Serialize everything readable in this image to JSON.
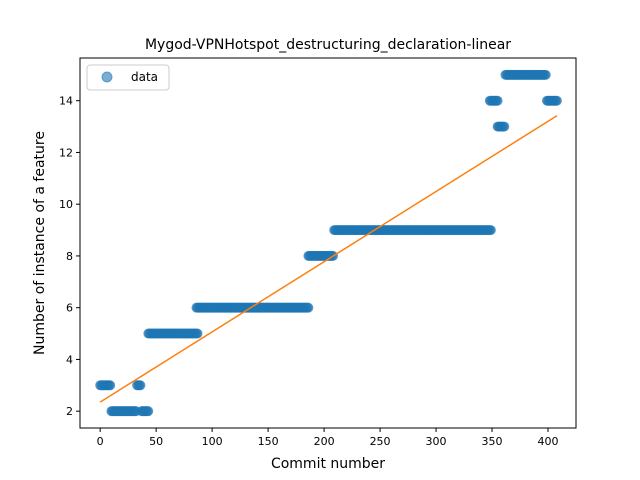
{
  "chart_data": {
    "type": "scatter",
    "title": "Mygod-VPNHotspot_destructuring_declaration-linear",
    "xlabel": "Commit number",
    "ylabel": "Number of instance of a feature",
    "xlim": [
      -18,
      425
    ],
    "ylim": [
      1.35,
      15.65
    ],
    "xticks": [
      0,
      50,
      100,
      150,
      200,
      250,
      300,
      350,
      400
    ],
    "yticks": [
      2,
      4,
      6,
      8,
      10,
      12,
      14
    ],
    "grid": false,
    "legend": {
      "position": "top-left",
      "entries": [
        "data"
      ]
    },
    "series": [
      {
        "name": "data",
        "kind": "points",
        "color": "#1f77b4",
        "segments": [
          {
            "x_start": 0,
            "x_end": 9,
            "y": 3
          },
          {
            "x_start": 10,
            "x_end": 32,
            "y": 2
          },
          {
            "x_start": 33,
            "x_end": 36,
            "y": 3
          },
          {
            "x_start": 37,
            "x_end": 43,
            "y": 2
          },
          {
            "x_start": 43,
            "x_end": 87,
            "y": 5
          },
          {
            "x_start": 86,
            "x_end": 186,
            "y": 6
          },
          {
            "x_start": 186,
            "x_end": 208,
            "y": 8
          },
          {
            "x_start": 209,
            "x_end": 349,
            "y": 9
          },
          {
            "x_start": 348,
            "x_end": 355,
            "y": 14
          },
          {
            "x_start": 355,
            "x_end": 361,
            "y": 13
          },
          {
            "x_start": 362,
            "x_end": 398,
            "y": 15
          },
          {
            "x_start": 399,
            "x_end": 408,
            "y": 14
          }
        ]
      },
      {
        "name": "",
        "kind": "line",
        "color": "#ff7f0e",
        "x": [
          0,
          408
        ],
        "y": [
          2.35,
          13.42
        ]
      }
    ]
  }
}
